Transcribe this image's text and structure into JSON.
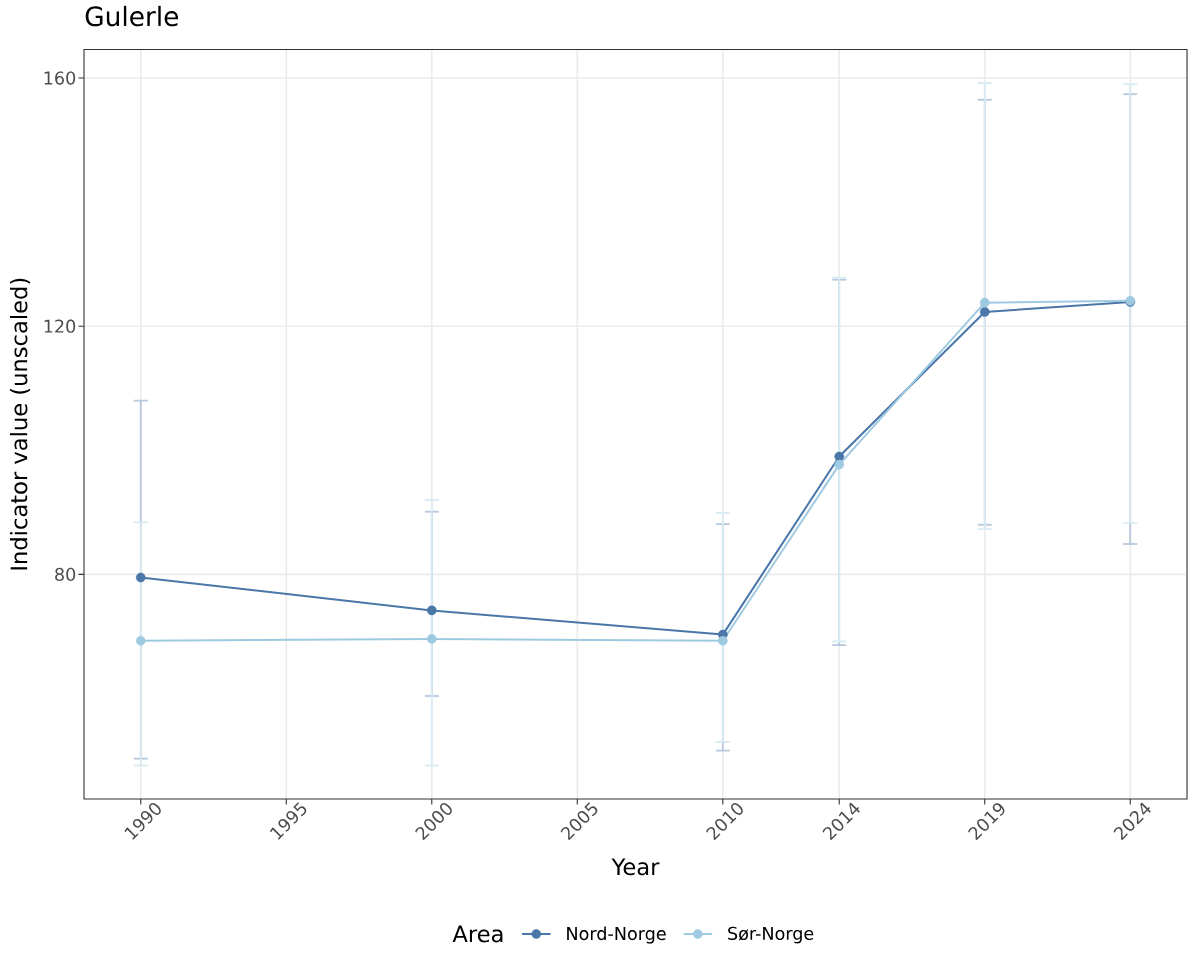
{
  "chart_data": {
    "type": "line",
    "title": "Gulerle",
    "xlabel": "Year",
    "ylabel": "Indicator value (unscaled)",
    "legend_title": "Area",
    "x": [
      1990,
      2000,
      2010,
      2014,
      2019,
      2024
    ],
    "series": [
      {
        "name": "Nord-Norge",
        "color": "#4a76a8",
        "values": [
          79.5,
          74.2,
          70.3,
          99.0,
          122.3,
          123.9
        ],
        "errors": [
          [
            50.3,
            108.0
          ],
          [
            60.4,
            90.1
          ],
          [
            51.6,
            88.1
          ],
          [
            68.6,
            127.5
          ],
          [
            88.0,
            156.5
          ],
          [
            84.9,
            157.4
          ]
        ]
      },
      {
        "name": "Sør-Norge",
        "color": "#9ecae1",
        "values": [
          69.3,
          69.6,
          69.3,
          97.7,
          123.8,
          124.1
        ],
        "errors": [
          [
            49.2,
            88.4
          ],
          [
            49.2,
            92.0
          ],
          [
            53.0,
            89.9
          ],
          [
            69.2,
            127.8
          ],
          [
            87.3,
            159.2
          ],
          [
            88.3,
            159.0
          ]
        ]
      }
    ],
    "xlim": [
      1988.05,
      2025.95
    ],
    "ylim": [
      43.8,
      164.6
    ],
    "xticks": [
      1990,
      1995,
      2000,
      2005,
      2010,
      2014,
      2019,
      2024
    ],
    "yticks": [
      80,
      120,
      160
    ],
    "grid": true,
    "legend": "bottom",
    "marker": "circle",
    "line_style": "solid"
  }
}
